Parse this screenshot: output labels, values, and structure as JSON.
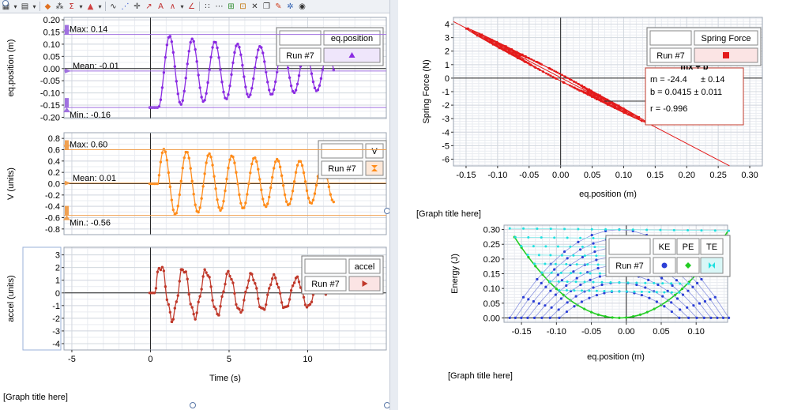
{
  "toolbar": {
    "icons": [
      "graph-options-icon",
      "dropdown-icon",
      "save-icon",
      "dropdown-icon",
      "color-icon",
      "interpolate-icon",
      "statistics-icon",
      "dropdown-icon",
      "integral-icon",
      "dropdown-icon",
      "tangent-icon",
      "curve-fit-icon",
      "crosshair-icon",
      "model-icon",
      "annotation-icon",
      "fft-icon",
      "dropdown-icon",
      "delta-icon",
      "scatter-icon",
      "strikethrough-icon",
      "zoom-icon",
      "crop-icon",
      "delete-icon",
      "copy-icon",
      "pin-icon",
      "settings-icon",
      "view-icon"
    ]
  },
  "graph_titles": {
    "left": "[Graph title here]",
    "right_top": "[Graph title here]",
    "right_bottom": "[Graph title here]"
  },
  "stats": {
    "pos_max": "Max: 0.14",
    "pos_mean": "Mean: -0.01",
    "pos_min": "Min.: -0.16",
    "v_max": "Max: 0.60",
    "v_mean": "Mean: 0.01",
    "v_min": "Min.: -0.56"
  },
  "colors": {
    "position": "#8a2be2",
    "velocity": "#ff8c1a",
    "accel": "#c0392b",
    "spring": "#e31b1b",
    "ke": "#2c3fd6",
    "pe": "#22cc22",
    "te": "#20e0e0"
  },
  "fit_box": {
    "equation": "mx + b",
    "m": "m = -24.4",
    "m_err": "± 0.14",
    "b": "b  = 0.0415 ± 0.011",
    "r": "r = -0.996"
  },
  "chart_data": [
    {
      "type": "line",
      "title": "",
      "xlabel": "",
      "ylabel": "eq.position (m)",
      "xlim": [
        -5.5,
        15
      ],
      "ylim": [
        -0.205,
        0.21
      ],
      "y_ticks": [
        0.2,
        0.15,
        0.1,
        0.05,
        0.0,
        -0.05,
        -0.1,
        -0.15,
        -0.2
      ],
      "y_tick_labels": [
        "0.20",
        "0.15",
        "0.10",
        "0.05",
        "0.00",
        "-0.05",
        "-0.10",
        "-0.15",
        "-0.20"
      ],
      "legend": {
        "header": "eq.position",
        "run": "Run #7"
      },
      "model": {
        "t_start": 0.5,
        "period": 1.44,
        "amplitude": 0.15,
        "decay": 0.06,
        "offset": -0.01,
        "rest_value": -0.16,
        "t_end": 11.7
      },
      "grid": true
    },
    {
      "type": "line",
      "title": "",
      "xlabel": "",
      "ylabel": "V (units)",
      "xlim": [
        -5.5,
        15
      ],
      "ylim": [
        -0.9,
        0.9
      ],
      "y_ticks": [
        0.8,
        0.6,
        0.4,
        0.2,
        0.0,
        -0.2,
        -0.4,
        -0.6,
        -0.8
      ],
      "y_tick_labels": [
        "0.8",
        "0.6",
        "0.4",
        "0.2",
        "0.0",
        "-0.2",
        "-0.4",
        "-0.6",
        "-0.8"
      ],
      "legend": {
        "header": "V",
        "run": "Run #7"
      },
      "model": {
        "t_start": 0.5,
        "period": 1.44,
        "amplitude": 0.6,
        "decay": 0.05,
        "offset": 0.02,
        "rest_value": 0.0,
        "t_end": 11.7
      },
      "grid": true
    },
    {
      "type": "line",
      "title": "",
      "xlabel": "Time (s)",
      "ylabel": "accel (units)",
      "xlim": [
        -5.5,
        15
      ],
      "ylim": [
        -4.5,
        3.6
      ],
      "y_ticks": [
        3,
        2,
        1,
        0,
        -1,
        -2,
        -3,
        -4
      ],
      "y_tick_labels": [
        "3",
        "2",
        "1",
        "0",
        "-1",
        "-2",
        "-3",
        "-4"
      ],
      "x_ticks": [
        -5,
        0,
        5,
        10
      ],
      "x_tick_labels": [
        "-5",
        "0",
        "5",
        "10"
      ],
      "legend": {
        "header": "accel",
        "run": "Run #7"
      },
      "model": {
        "t_start": 0.3,
        "period": 1.44,
        "amplitude": 2.2,
        "decay": 0.07,
        "offset": 0.0,
        "rest_value": 0.0,
        "t_end": 11.2
      },
      "grid": true
    },
    {
      "type": "scatter",
      "title": "",
      "xlabel": "eq.position (m)",
      "ylabel": "Spring Force (N)",
      "xlim": [
        -0.17,
        0.32
      ],
      "ylim": [
        -6.5,
        4.5
      ],
      "x_ticks": [
        -0.15,
        -0.1,
        -0.05,
        0.0,
        0.05,
        0.1,
        0.15,
        0.2,
        0.25,
        0.3
      ],
      "x_tick_labels": [
        "-0.15",
        "-0.10",
        "-0.05",
        "0.00",
        "0.05",
        "0.10",
        "0.15",
        "0.20",
        "0.25",
        "0.30"
      ],
      "y_ticks": [
        4,
        3,
        2,
        1,
        0,
        -1,
        -2,
        -3,
        -4,
        -5,
        -6
      ],
      "y_tick_labels": [
        "4",
        "3",
        "2",
        "1",
        "0",
        "-1",
        "-2",
        "-3",
        "-4",
        "-5",
        "-6"
      ],
      "legend": {
        "header": "Spring Force",
        "run": "Run #7"
      },
      "fit": {
        "m": -24.4,
        "b": 0.0415
      },
      "data_x_range": [
        -0.16,
        0.14
      ],
      "grid": true
    },
    {
      "type": "scatter",
      "title": "",
      "xlabel": "eq.position (m)",
      "ylabel": "Energy (J)",
      "xlim": [
        -0.175,
        0.145
      ],
      "ylim": [
        -0.015,
        0.315
      ],
      "x_ticks": [
        -0.15,
        -0.1,
        -0.05,
        0.0,
        0.05,
        0.1
      ],
      "x_tick_labels": [
        "-0.15",
        "-0.10",
        "-0.05",
        "0.00",
        "0.05",
        "0.10"
      ],
      "y_ticks": [
        0.3,
        0.25,
        0.2,
        0.15,
        0.1,
        0.05,
        0.0
      ],
      "y_tick_labels": [
        "0.30",
        "0.25",
        "0.20",
        "0.15",
        "0.10",
        "0.05",
        "0.00"
      ],
      "legend": {
        "run": "Run #7",
        "series": [
          "KE",
          "PE",
          "TE"
        ]
      },
      "series": [
        {
          "name": "KE",
          "shape": "parabola-down"
        },
        {
          "name": "PE",
          "k": 24.4
        },
        {
          "name": "TE",
          "shape": "near-constant"
        }
      ],
      "grid": true
    }
  ]
}
